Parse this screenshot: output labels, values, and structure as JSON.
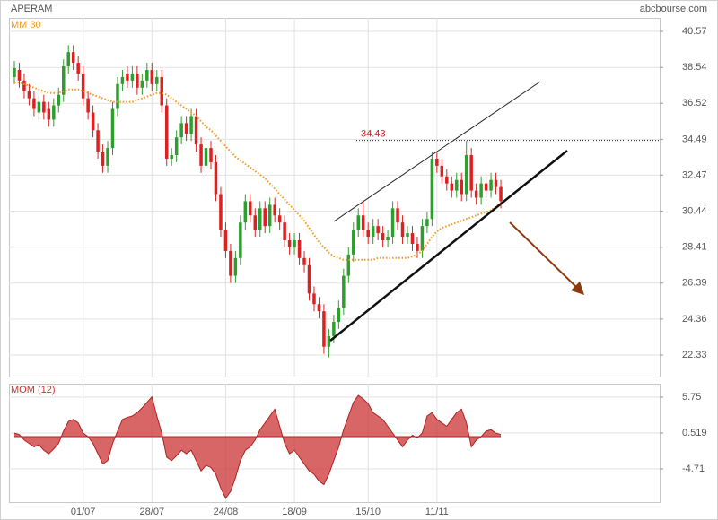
{
  "chart_data": [
    {
      "type": "candlestick",
      "title": "APERAM",
      "source": "abcbourse.com",
      "categories": [
        null,
        null,
        null,
        null,
        null,
        null,
        null,
        null,
        null,
        null,
        null,
        null,
        null,
        null,
        "01/07",
        null,
        null,
        null,
        null,
        null,
        null,
        null,
        null,
        null,
        null,
        null,
        null,
        null,
        "28/07",
        null,
        null,
        null,
        null,
        null,
        null,
        null,
        null,
        null,
        null,
        null,
        null,
        null,
        null,
        "24/08",
        null,
        null,
        null,
        null,
        null,
        null,
        null,
        null,
        null,
        null,
        null,
        null,
        null,
        "18/09",
        null,
        null,
        null,
        null,
        null,
        null,
        null,
        null,
        null,
        null,
        null,
        null,
        null,
        null,
        "15/10",
        null,
        null,
        null,
        null,
        null,
        null,
        null,
        null,
        null,
        null,
        null,
        null,
        null,
        "11/11",
        null,
        null,
        null,
        null,
        null,
        null,
        null,
        null,
        null,
        null,
        null,
        null,
        null
      ],
      "open": [
        38.0,
        38.4,
        37.8,
        37.2,
        36.8,
        36.0,
        36.6,
        36.2,
        35.6,
        36.4,
        37.0,
        38.6,
        39.4,
        38.8,
        38.2,
        36.8,
        36.0,
        35.0,
        33.8,
        33.0,
        34.0,
        36.2,
        37.6,
        38.2,
        37.8,
        38.2,
        37.4,
        37.8,
        38.4,
        37.6,
        38.0,
        36.4,
        33.4,
        33.6,
        34.6,
        35.4,
        34.8,
        35.8,
        34.2,
        33.0,
        34.0,
        33.2,
        31.4,
        29.4,
        28.2,
        26.8,
        27.8,
        29.8,
        31.0,
        30.2,
        29.4,
        30.6,
        29.6,
        30.8,
        30.2,
        29.8,
        28.8,
        28.4,
        28.8,
        27.8,
        27.4,
        25.8,
        25.2,
        24.8,
        22.8,
        23.4,
        24.2,
        25.0,
        26.8,
        28.0,
        29.4,
        30.2,
        29.4,
        29.0,
        29.6,
        29.2,
        28.8,
        29.0,
        30.6,
        29.8,
        29.0,
        29.2,
        28.6,
        28.2,
        29.6,
        30.0,
        33.4,
        33.0,
        32.4,
        32.0,
        31.6,
        32.2,
        31.4,
        33.6,
        31.6,
        31.2,
        32.0,
        31.6,
        32.2,
        31.8
      ],
      "high": [
        38.9,
        38.8,
        38.2,
        37.6,
        37.2,
        37.0,
        37.0,
        36.6,
        36.8,
        37.4,
        39.0,
        39.8,
        39.8,
        39.2,
        38.6,
        37.2,
        36.4,
        35.4,
        34.2,
        34.4,
        36.6,
        38.0,
        38.4,
        38.6,
        38.6,
        38.6,
        38.2,
        38.8,
        38.8,
        38.4,
        38.4,
        36.8,
        34.0,
        35.0,
        35.8,
        35.8,
        36.2,
        36.2,
        34.6,
        34.4,
        34.4,
        33.6,
        31.8,
        29.8,
        28.6,
        28.2,
        30.2,
        31.4,
        31.4,
        30.6,
        31.0,
        31.0,
        31.2,
        31.2,
        30.6,
        30.2,
        29.2,
        29.2,
        29.2,
        28.2,
        27.8,
        26.2,
        25.6,
        25.2,
        23.8,
        24.6,
        25.4,
        27.2,
        28.4,
        29.8,
        30.6,
        31.0,
        29.8,
        30.0,
        30.0,
        29.6,
        29.4,
        31.0,
        31.0,
        30.2,
        29.6,
        29.6,
        29.0,
        30.0,
        30.4,
        33.8,
        33.8,
        33.4,
        32.8,
        32.4,
        32.6,
        32.6,
        34.4,
        34.0,
        32.0,
        32.4,
        32.4,
        32.6,
        32.6,
        32.2
      ],
      "low": [
        37.6,
        37.4,
        36.8,
        36.4,
        35.8,
        35.6,
        35.6,
        35.2,
        35.2,
        36.0,
        36.6,
        38.2,
        38.4,
        37.8,
        36.4,
        35.6,
        34.6,
        33.4,
        32.6,
        32.6,
        33.6,
        35.8,
        37.2,
        37.4,
        37.4,
        37.0,
        37.0,
        37.4,
        37.2,
        37.2,
        36.0,
        33.0,
        33.0,
        33.2,
        34.2,
        34.4,
        34.4,
        33.8,
        32.6,
        32.6,
        32.8,
        31.0,
        29.0,
        27.8,
        26.4,
        26.4,
        27.4,
        29.4,
        29.8,
        29.0,
        29.0,
        29.2,
        29.2,
        29.8,
        29.4,
        28.4,
        28.0,
        28.0,
        27.4,
        27.0,
        25.4,
        24.8,
        24.4,
        22.4,
        22.2,
        23.0,
        23.8,
        24.6,
        26.4,
        27.6,
        29.0,
        29.0,
        28.6,
        28.6,
        28.8,
        28.4,
        28.4,
        28.6,
        29.4,
        28.6,
        28.6,
        28.2,
        27.8,
        27.8,
        29.2,
        29.6,
        32.6,
        32.0,
        31.6,
        31.2,
        31.2,
        31.0,
        31.0,
        31.2,
        30.8,
        30.8,
        31.2,
        31.2,
        31.4,
        30.6
      ],
      "close": [
        38.5,
        37.8,
        37.2,
        36.8,
        36.2,
        36.6,
        36.0,
        35.6,
        36.4,
        37.0,
        38.6,
        39.4,
        38.8,
        38.2,
        36.8,
        36.0,
        35.0,
        33.8,
        33.0,
        34.0,
        36.2,
        37.6,
        38.0,
        37.8,
        38.2,
        37.4,
        37.8,
        38.4,
        37.6,
        38.0,
        36.4,
        33.4,
        33.6,
        34.6,
        35.4,
        34.8,
        35.8,
        34.2,
        33.0,
        34.0,
        33.2,
        31.4,
        29.4,
        28.2,
        26.8,
        27.8,
        29.8,
        31.0,
        30.2,
        29.4,
        30.6,
        29.6,
        30.8,
        30.2,
        29.8,
        28.8,
        28.4,
        28.8,
        27.8,
        27.4,
        25.8,
        25.2,
        24.8,
        22.8,
        23.4,
        24.2,
        25.0,
        26.8,
        28.0,
        29.4,
        30.2,
        29.4,
        29.0,
        29.6,
        29.2,
        28.8,
        29.0,
        30.6,
        29.8,
        29.0,
        29.2,
        28.6,
        28.2,
        29.6,
        30.0,
        33.4,
        33.0,
        32.4,
        32.0,
        31.6,
        32.2,
        31.4,
        33.6,
        31.6,
        31.2,
        32.0,
        31.6,
        32.2,
        31.8,
        31.0
      ],
      "up_color": "#2e9e2e",
      "down_color": "#dd2020",
      "series": [
        {
          "name": "MM 30",
          "color": "#f39a1e",
          "values": [
            37.7,
            37.7,
            37.6,
            37.5,
            37.4,
            37.3,
            37.2,
            37.1,
            37.1,
            37.1,
            37.2,
            37.3,
            37.3,
            37.3,
            37.2,
            37.1,
            37.0,
            36.9,
            36.8,
            36.7,
            36.6,
            36.6,
            36.6,
            36.6,
            36.6,
            36.7,
            36.8,
            36.9,
            37.0,
            37.1,
            37.1,
            37.0,
            36.8,
            36.6,
            36.4,
            36.2,
            36.0,
            35.8,
            35.5,
            35.2,
            35.0,
            34.7,
            34.4,
            34.1,
            33.8,
            33.5,
            33.3,
            33.1,
            32.9,
            32.7,
            32.5,
            32.3,
            32.0,
            31.7,
            31.4,
            31.1,
            30.8,
            30.5,
            30.2,
            29.9,
            29.5,
            29.1,
            28.7,
            28.4,
            28.1,
            27.9,
            27.8,
            27.7,
            27.7,
            27.7,
            27.7,
            27.7,
            27.7,
            27.7,
            27.8,
            27.8,
            27.8,
            27.8,
            27.8,
            27.8,
            27.8,
            27.9,
            28.0,
            28.2,
            28.6,
            29.0,
            29.3,
            29.5,
            29.6,
            29.7,
            29.8,
            29.9,
            30.0,
            30.1,
            30.2,
            30.3,
            30.4,
            30.5,
            30.7,
            30.9
          ]
        }
      ],
      "annotations": [
        {
          "value": 34.43,
          "color": "#cc2222"
        }
      ],
      "ylim": [
        21.12,
        41.33
      ],
      "yticks": [
        22.33,
        24.36,
        26.39,
        28.41,
        30.44,
        32.47,
        34.49,
        36.52,
        38.54,
        40.57
      ],
      "grid": true
    },
    {
      "type": "area",
      "series": [
        {
          "name": "MOM (12)",
          "color": "#cc3333",
          "values": [
            0.5,
            0.3,
            -0.5,
            -1.0,
            -1.5,
            -1.2,
            -2.0,
            -2.5,
            -1.8,
            -1.0,
            0.8,
            2.2,
            2.5,
            2.0,
            0.5,
            0.0,
            -1.0,
            -2.5,
            -4.0,
            -3.5,
            -1.0,
            0.8,
            2.5,
            2.8,
            3.0,
            3.5,
            4.2,
            5.0,
            5.8,
            3.0,
            0.5,
            -3.0,
            -3.5,
            -2.8,
            -2.0,
            -2.5,
            -2.0,
            -3.5,
            -5.0,
            -4.2,
            -4.5,
            -5.5,
            -7.5,
            -9.0,
            -8.0,
            -6.0,
            -3.5,
            -2.0,
            -1.5,
            -0.5,
            1.0,
            2.0,
            3.0,
            4.0,
            1.5,
            -1.0,
            -2.5,
            -2.0,
            -3.0,
            -4.0,
            -5.0,
            -5.5,
            -6.5,
            -7.0,
            -5.5,
            -3.5,
            -1.5,
            1.0,
            3.0,
            5.0,
            6.0,
            5.5,
            4.8,
            3.5,
            3.0,
            2.5,
            1.5,
            0.5,
            -0.5,
            -1.5,
            -0.5,
            0.2,
            -0.2,
            0.5,
            3.0,
            3.5,
            2.5,
            2.0,
            1.5,
            2.5,
            3.5,
            4.0,
            2.0,
            -1.5,
            -0.5,
            0.0,
            0.8,
            1.0,
            0.5,
            0.3
          ]
        }
      ],
      "ylim": [
        -9.55,
        7.71
      ],
      "yticks": [
        5.75,
        0.519,
        -4.71
      ],
      "grid": true
    }
  ]
}
